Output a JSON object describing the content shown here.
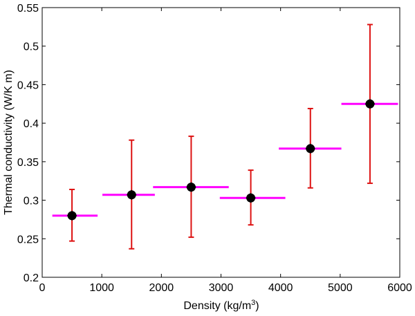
{
  "chart_data": {
    "type": "scatter",
    "title": "",
    "xlabel": "Density (kg/m",
    "xlabel_sup": "3",
    "xlabel_end": ")",
    "ylabel": "Thermal conductivity (W/K m)",
    "xlim": [
      0,
      6000
    ],
    "ylim": [
      0.2,
      0.55
    ],
    "xticks": [
      0,
      1000,
      2000,
      3000,
      4000,
      5000,
      6000
    ],
    "yticks": [
      0.2,
      0.25,
      0.3,
      0.35,
      0.4,
      0.45,
      0.5,
      0.55
    ],
    "xtick_labels": [
      "0",
      "1000",
      "2000",
      "3000",
      "4000",
      "5000",
      "6000"
    ],
    "ytick_labels": [
      "0.2",
      "0.25",
      "0.3",
      "0.35",
      "0.4",
      "0.45",
      "0.5",
      "0.55"
    ],
    "grid": false,
    "points": [
      {
        "x": 500,
        "y": 0.28,
        "yerr_low": 0.247,
        "yerr_high": 0.314,
        "xerr_low": 170,
        "xerr_high": 930
      },
      {
        "x": 1500,
        "y": 0.307,
        "yerr_low": 0.237,
        "yerr_high": 0.378,
        "xerr_low": 1010,
        "xerr_high": 1890
      },
      {
        "x": 2500,
        "y": 0.317,
        "yerr_low": 0.252,
        "yerr_high": 0.383,
        "xerr_low": 1860,
        "xerr_high": 3130
      },
      {
        "x": 3500,
        "y": 0.303,
        "yerr_low": 0.268,
        "yerr_high": 0.339,
        "xerr_low": 2980,
        "xerr_high": 4080
      },
      {
        "x": 4500,
        "y": 0.367,
        "yerr_low": 0.316,
        "yerr_high": 0.419,
        "xerr_low": 3970,
        "xerr_high": 5020
      },
      {
        "x": 5500,
        "y": 0.425,
        "yerr_low": 0.322,
        "yerr_high": 0.528,
        "xerr_low": 5020,
        "xerr_high": 5970
      }
    ],
    "colors": {
      "yerr": "#dd1111",
      "xerr": "#ff00ff",
      "marker": "#000000"
    }
  }
}
